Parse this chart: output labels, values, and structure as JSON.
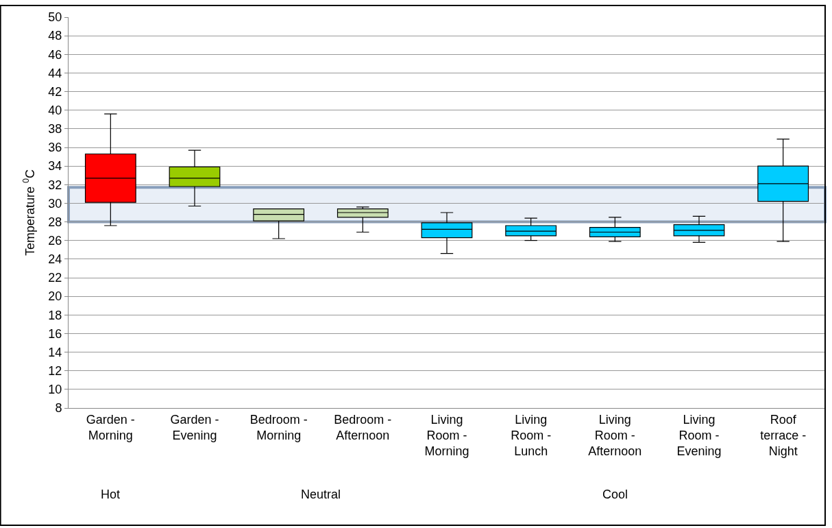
{
  "chart_data": {
    "type": "box",
    "ylabel": "Temperature $^{0}$C",
    "categories": [
      "Garden - Morning",
      "Garden - Evening",
      "Bedroom - Morning",
      "Bedroom - Afternoon",
      "Living Room - Morning",
      "Living Room - Lunch",
      "Living Room - Afternoon",
      "Living Room - Evening",
      "Roof terrace - Night"
    ],
    "boxes": [
      {
        "low": 27.6,
        "q1": 30.1,
        "median": 32.7,
        "q3": 35.3,
        "high": 39.6
      },
      {
        "low": 29.7,
        "q1": 31.8,
        "median": 32.7,
        "q3": 33.9,
        "high": 35.7
      },
      {
        "low": 26.2,
        "q1": 28.1,
        "median": 28.8,
        "q3": 29.4,
        "high": 29.4
      },
      {
        "low": 26.9,
        "q1": 28.5,
        "median": 29.0,
        "q3": 29.4,
        "high": 29.6
      },
      {
        "low": 24.6,
        "q1": 26.3,
        "median": 27.2,
        "q3": 27.9,
        "high": 29.0
      },
      {
        "low": 26.0,
        "q1": 26.5,
        "median": 27.0,
        "q3": 27.6,
        "high": 28.4
      },
      {
        "low": 25.9,
        "q1": 26.4,
        "median": 26.9,
        "q3": 27.4,
        "high": 28.5
      },
      {
        "low": 25.8,
        "q1": 26.5,
        "median": 27.1,
        "q3": 27.7,
        "high": 28.6
      },
      {
        "low": 25.9,
        "q1": 30.2,
        "median": 32.1,
        "q3": 34.0,
        "high": 36.9
      }
    ],
    "colors": [
      "#ff0000",
      "#99cc00",
      "#c9deb0",
      "#c9deb0",
      "#00ccff",
      "#00ccff",
      "#00ccff",
      "#00ccff",
      "#00ccff"
    ],
    "ylim": [
      8,
      50
    ],
    "yticks": [
      8,
      10,
      12,
      14,
      16,
      18,
      20,
      22,
      24,
      26,
      28,
      30,
      32,
      34,
      36,
      38,
      40,
      42,
      44,
      46,
      48,
      50
    ],
    "grid": "y",
    "bands": [
      {
        "axis": "y",
        "from": 28,
        "to": 31.7,
        "color": "#dce6f2"
      }
    ],
    "annotations": [
      "Hot",
      "Neutral",
      "Cool"
    ]
  }
}
